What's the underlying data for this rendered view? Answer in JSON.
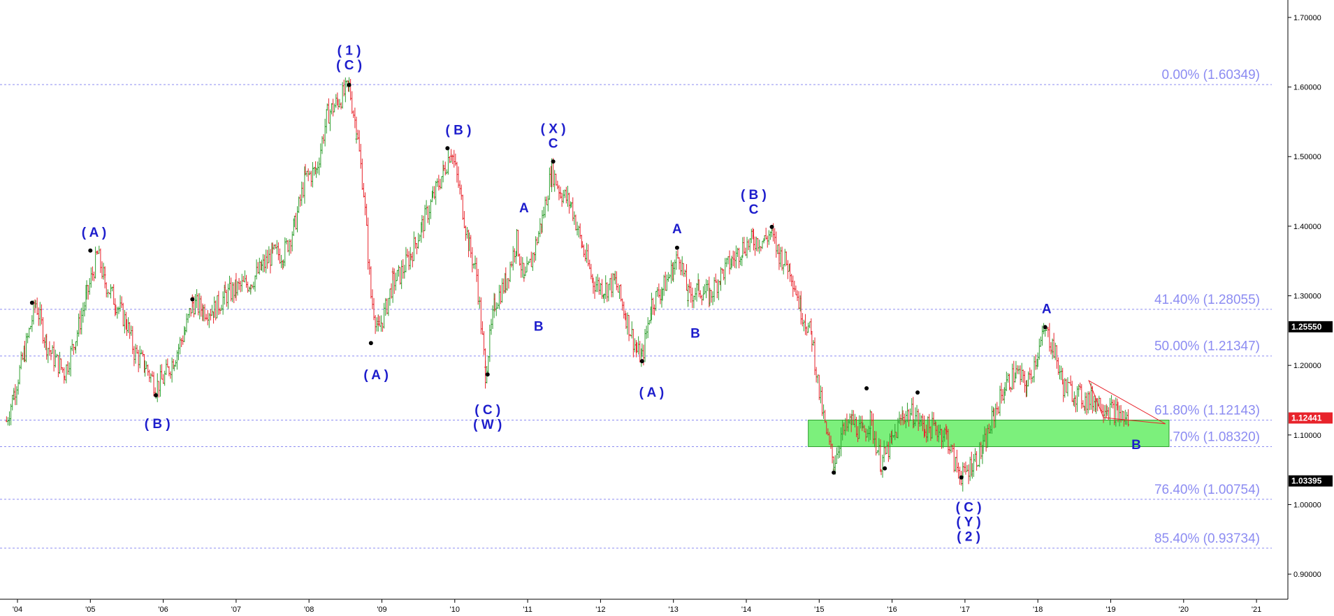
{
  "chart_data": {
    "type": "line",
    "title": "",
    "xlabel": "",
    "ylabel": "",
    "x_ticks": [
      "'04",
      "'05",
      "'06",
      "'07",
      "'08",
      "'09",
      "'10",
      "'11",
      "'12",
      "'13",
      "'14",
      "'15",
      "'16",
      "'17",
      "'18",
      "'19",
      "'20",
      "'21"
    ],
    "ylim": [
      0.88,
      1.71
    ],
    "y_ticks": [
      "0.90000",
      "1.00000",
      "1.10000",
      "1.20000",
      "1.30000",
      "1.40000",
      "1.50000",
      "1.60000",
      "1.70000"
    ],
    "grid": false,
    "series": [
      {
        "points": [
          [
            2003.85,
            1.12
          ],
          [
            2003.95,
            1.16
          ],
          [
            2004.1,
            1.22
          ],
          [
            2004.25,
            1.29
          ],
          [
            2004.4,
            1.23
          ],
          [
            2004.5,
            1.21
          ],
          [
            2004.65,
            1.19
          ],
          [
            2004.8,
            1.24
          ],
          [
            2004.95,
            1.3
          ],
          [
            2005.1,
            1.36
          ],
          [
            2005.2,
            1.32
          ],
          [
            2005.35,
            1.29
          ],
          [
            2005.5,
            1.26
          ],
          [
            2005.6,
            1.22
          ],
          [
            2005.75,
            1.2
          ],
          [
            2005.9,
            1.17
          ],
          [
            2006.0,
            1.18
          ],
          [
            2006.15,
            1.21
          ],
          [
            2006.3,
            1.25
          ],
          [
            2006.4,
            1.29
          ],
          [
            2006.55,
            1.28
          ],
          [
            2006.7,
            1.28
          ],
          [
            2006.85,
            1.3
          ],
          [
            2007.0,
            1.31
          ],
          [
            2007.2,
            1.32
          ],
          [
            2007.35,
            1.34
          ],
          [
            2007.5,
            1.36
          ],
          [
            2007.65,
            1.36
          ],
          [
            2007.8,
            1.4
          ],
          [
            2007.95,
            1.47
          ],
          [
            2008.1,
            1.48
          ],
          [
            2008.25,
            1.56
          ],
          [
            2008.4,
            1.58
          ],
          [
            2008.55,
            1.6
          ],
          [
            2008.65,
            1.54
          ],
          [
            2008.75,
            1.45
          ],
          [
            2008.85,
            1.3
          ],
          [
            2008.95,
            1.25
          ],
          [
            2009.05,
            1.28
          ],
          [
            2009.15,
            1.32
          ],
          [
            2009.25,
            1.33
          ],
          [
            2009.4,
            1.36
          ],
          [
            2009.55,
            1.4
          ],
          [
            2009.7,
            1.44
          ],
          [
            2009.85,
            1.48
          ],
          [
            2009.95,
            1.51
          ],
          [
            2010.05,
            1.46
          ],
          [
            2010.2,
            1.37
          ],
          [
            2010.3,
            1.33
          ],
          [
            2010.42,
            1.19
          ],
          [
            2010.55,
            1.29
          ],
          [
            2010.7,
            1.32
          ],
          [
            2010.85,
            1.38
          ],
          [
            2010.95,
            1.32
          ],
          [
            2011.05,
            1.35
          ],
          [
            2011.2,
            1.41
          ],
          [
            2011.33,
            1.48
          ],
          [
            2011.45,
            1.45
          ],
          [
            2011.6,
            1.43
          ],
          [
            2011.75,
            1.37
          ],
          [
            2011.9,
            1.32
          ],
          [
            2012.05,
            1.31
          ],
          [
            2012.2,
            1.32
          ],
          [
            2012.35,
            1.27
          ],
          [
            2012.5,
            1.22
          ],
          [
            2012.57,
            1.21
          ],
          [
            2012.7,
            1.29
          ],
          [
            2012.85,
            1.31
          ],
          [
            2013.0,
            1.34
          ],
          [
            2013.08,
            1.36
          ],
          [
            2013.2,
            1.3
          ],
          [
            2013.35,
            1.31
          ],
          [
            2013.5,
            1.3
          ],
          [
            2013.65,
            1.33
          ],
          [
            2013.8,
            1.35
          ],
          [
            2013.95,
            1.37
          ],
          [
            2014.1,
            1.38
          ],
          [
            2014.25,
            1.38
          ],
          [
            2014.33,
            1.39
          ],
          [
            2014.45,
            1.36
          ],
          [
            2014.6,
            1.34
          ],
          [
            2014.75,
            1.28
          ],
          [
            2014.9,
            1.24
          ],
          [
            2015.0,
            1.16
          ],
          [
            2015.1,
            1.1
          ],
          [
            2015.2,
            1.06
          ],
          [
            2015.3,
            1.1
          ],
          [
            2015.45,
            1.12
          ],
          [
            2015.6,
            1.1
          ],
          [
            2015.7,
            1.12
          ],
          [
            2015.85,
            1.06
          ],
          [
            2016.0,
            1.09
          ],
          [
            2016.15,
            1.13
          ],
          [
            2016.3,
            1.13
          ],
          [
            2016.45,
            1.11
          ],
          [
            2016.6,
            1.11
          ],
          [
            2016.75,
            1.1
          ],
          [
            2016.85,
            1.06
          ],
          [
            2016.97,
            1.04
          ],
          [
            2017.1,
            1.06
          ],
          [
            2017.25,
            1.08
          ],
          [
            2017.4,
            1.13
          ],
          [
            2017.55,
            1.17
          ],
          [
            2017.7,
            1.19
          ],
          [
            2017.85,
            1.17
          ],
          [
            2018.0,
            1.22
          ],
          [
            2018.1,
            1.25
          ],
          [
            2018.2,
            1.23
          ],
          [
            2018.35,
            1.17
          ],
          [
            2018.5,
            1.16
          ],
          [
            2018.65,
            1.15
          ],
          [
            2018.8,
            1.15
          ],
          [
            2018.95,
            1.14
          ],
          [
            2019.1,
            1.13
          ],
          [
            2019.25,
            1.12
          ]
        ]
      }
    ],
    "fib_levels": [
      {
        "label": "0.00% (1.60349)",
        "value": 1.60349
      },
      {
        "label": "41.40% (1.28055)",
        "value": 1.28055
      },
      {
        "label": "50.00% (1.21347)",
        "value": 1.21347
      },
      {
        "label": "61.80% (1.12143)",
        "value": 1.12143
      },
      {
        "label": "66.70% (1.08320)",
        "value": 1.0832
      },
      {
        "label": "76.40% (1.00754)",
        "value": 1.00754
      },
      {
        "label": "85.40% (0.93734)",
        "value": 0.93734
      }
    ],
    "support_zone": {
      "from_year": 2014.85,
      "to_year": 2019.8,
      "low": 1.0832,
      "high": 1.1214
    },
    "triangle": [
      [
        2018.7,
        1.178
      ],
      [
        2019.75,
        1.116
      ],
      [
        2018.9,
        1.125
      ]
    ],
    "swing_points": [
      [
        2004.2,
        1.29
      ],
      [
        2005.0,
        1.365
      ],
      [
        2005.9,
        1.157
      ],
      [
        2006.4,
        1.295
      ],
      [
        2008.55,
        1.603
      ],
      [
        2008.85,
        1.232
      ],
      [
        2009.9,
        1.512
      ],
      [
        2010.45,
        1.187
      ],
      [
        2011.35,
        1.493
      ],
      [
        2012.57,
        1.206
      ],
      [
        2013.05,
        1.369
      ],
      [
        2014.35,
        1.399
      ],
      [
        2015.2,
        1.046
      ],
      [
        2015.65,
        1.167
      ],
      [
        2015.9,
        1.052
      ],
      [
        2016.35,
        1.161
      ],
      [
        2016.95,
        1.039
      ],
      [
        2018.1,
        1.255
      ]
    ],
    "wave_labels": [
      {
        "lines": [
          "( A )"
        ],
        "year": 2005.05,
        "price": 1.385,
        "below": false
      },
      {
        "lines": [
          "( B )"
        ],
        "year": 2005.92,
        "price": 1.13,
        "below": true
      },
      {
        "lines": [
          "( 1 )",
          "( C )"
        ],
        "year": 2008.55,
        "price": 1.625,
        "below": false
      },
      {
        "lines": [
          "( A )"
        ],
        "year": 2008.92,
        "price": 1.2,
        "below": true
      },
      {
        "lines": [
          "( B )"
        ],
        "year": 2010.05,
        "price": 1.532,
        "below": false
      },
      {
        "lines": [
          "( C )",
          "( W )"
        ],
        "year": 2010.45,
        "price": 1.15,
        "below": true
      },
      {
        "lines": [
          "A"
        ],
        "year": 2010.95,
        "price": 1.42,
        "below": false
      },
      {
        "lines": [
          "B"
        ],
        "year": 2011.15,
        "price": 1.27,
        "below": true
      },
      {
        "lines": [
          "( X )",
          "C"
        ],
        "year": 2011.35,
        "price": 1.513,
        "below": false
      },
      {
        "lines": [
          "( A )"
        ],
        "year": 2012.7,
        "price": 1.175,
        "below": true
      },
      {
        "lines": [
          "A"
        ],
        "year": 2013.05,
        "price": 1.39,
        "below": false
      },
      {
        "lines": [
          "B"
        ],
        "year": 2013.3,
        "price": 1.26,
        "below": true
      },
      {
        "lines": [
          "( B )",
          "C"
        ],
        "year": 2014.1,
        "price": 1.418,
        "below": false
      },
      {
        "lines": [
          "( C )",
          "( Y )",
          "( 2 )"
        ],
        "year": 2017.05,
        "price": 1.01,
        "below": true
      },
      {
        "lines": [
          "A"
        ],
        "year": 2018.12,
        "price": 1.275,
        "below": false
      },
      {
        "lines": [
          "B"
        ],
        "year": 2019.35,
        "price": 1.1,
        "below": true
      }
    ],
    "price_tags": [
      {
        "text": "1.25550",
        "value": 1.2555,
        "bg": "#000000",
        "fg": "#ffffff"
      },
      {
        "text": "1.12441",
        "value": 1.12441,
        "bg": "#e8232b",
        "fg": "#ffffff"
      },
      {
        "text": "1.03395",
        "value": 1.03395,
        "bg": "#000000",
        "fg": "#ffffff"
      }
    ],
    "colors": {
      "up_bar": "#2e9e2e",
      "down_bar": "#e8232b",
      "fib_line": "#8c8cf2",
      "fib_text": "#8c8cf2",
      "wave_text": "#1d1dcc",
      "zone_fill": "#7cf07c",
      "triangle": "#e8232b",
      "axis": "#000000"
    }
  }
}
